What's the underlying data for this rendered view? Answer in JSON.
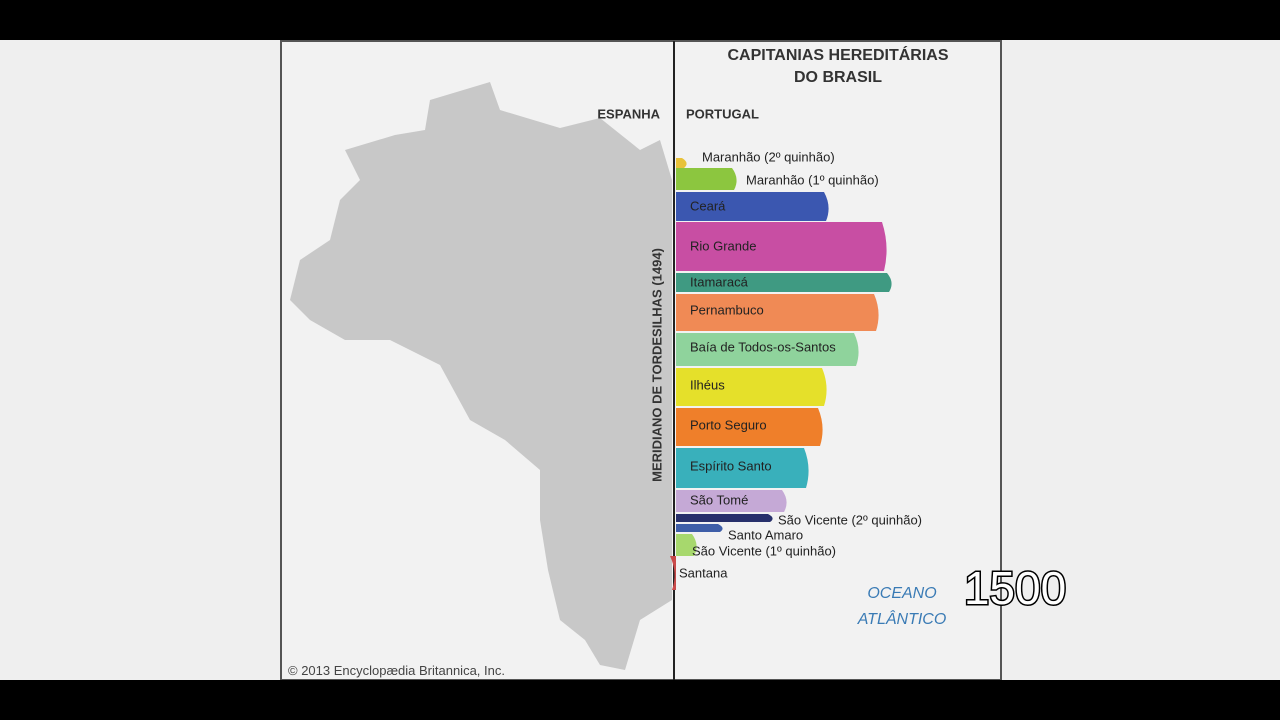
{
  "header": {
    "title_lines": [
      "CAPITANIAS HEREDITÁRIAS",
      "DO BRASIL"
    ]
  },
  "regions": {
    "west": "ESPANHA",
    "east": "PORTUGAL"
  },
  "meridian": "MERIDIANO DE TORDESILHAS (1494)",
  "capitanias": [
    "Maranhão (2º quinhão)",
    "Maranhão (1º quinhão)",
    "Ceará",
    "Rio Grande",
    "Itamaracá",
    "Pernambuco",
    "Baía de Todos-os-Santos",
    "Ilhéus",
    "Porto Seguro",
    "Espírito Santo",
    "São Tomé",
    "São Vicente (2º quinhão)",
    "Santo Amaro",
    "São Vicente (1º quinhão)",
    "Santana"
  ],
  "ocean": [
    "OCEANO",
    "ATLÂNTICO"
  ],
  "copyright": "© 2013 Encyclopædia Britannica, Inc.",
  "overlay_year": "1500"
}
